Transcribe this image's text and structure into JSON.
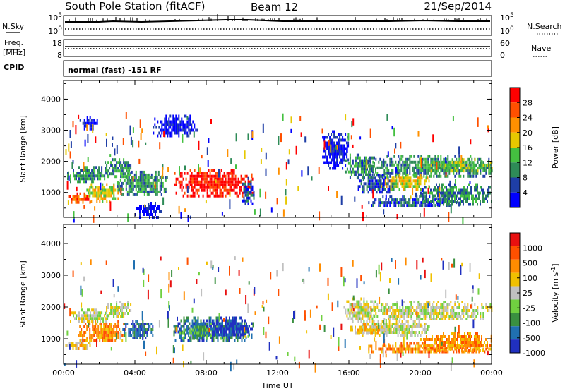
{
  "header": {
    "title": "South Pole Station (fitACF)",
    "beam": "Beam 12",
    "date": "21/Sep/2014"
  },
  "strip": {
    "nsky_label": "N.Sky",
    "nsearch_label": "N.Search",
    "freq_label_1": "Freq.",
    "freq_label_2": "[MHz]",
    "nave_label": "Nave",
    "cpid_label": "CPID",
    "cpid_text": "normal (fast) -151 RF",
    "noise_ticks_left": [
      "10^5",
      "10^0"
    ],
    "noise_ticks_right": [
      "10^5",
      "10^0"
    ],
    "freq_ticks_left": [
      "18",
      "8"
    ],
    "freq_ticks_right": [
      "60",
      "0"
    ]
  },
  "colors": {
    "power": [
      "#0000ff",
      "#1e3ea6",
      "#2e8b57",
      "#44c040",
      "#e6c800",
      "#ff9000",
      "#ff5000",
      "#ff0000"
    ],
    "velocity": [
      "#2030c0",
      "#2070b0",
      "#3a9040",
      "#70d040",
      "#c0c0c0",
      "#f0c000",
      "#ff8c00",
      "#ff5000",
      "#e81010"
    ]
  },
  "chart_data": [
    {
      "type": "heatmap",
      "quantity": "power",
      "ylabel": "Slant Range [km]",
      "xlabel": "",
      "ylim": [
        200,
        4600
      ],
      "xlim": [
        0,
        24
      ],
      "y_ticks": [
        "1000",
        "2000",
        "3000",
        "4000"
      ],
      "x_ticks": [
        "00:00",
        "04:00",
        "08:00",
        "12:00",
        "16:00",
        "20:00",
        "00:00"
      ],
      "colorbar_label": "Power [dB]",
      "colorbar_ticks": [
        "28",
        "24",
        "20",
        "16",
        "12",
        "8",
        "4"
      ],
      "colorbar_range": [
        0,
        32
      ],
      "regions": [
        {
          "x": [
            0.2,
            2.5
          ],
          "y": [
            1350,
            1850
          ],
          "level": 2
        },
        {
          "x": [
            2.3,
            3.8
          ],
          "y": [
            1500,
            2100
          ],
          "level": 2
        },
        {
          "x": [
            0.1,
            1.5
          ],
          "y": [
            650,
            1000
          ],
          "level": 6
        },
        {
          "x": [
            1.2,
            3.2
          ],
          "y": [
            750,
            1300
          ],
          "level": 4
        },
        {
          "x": [
            3.0,
            5.8
          ],
          "y": [
            900,
            1700
          ],
          "level": 2
        },
        {
          "x": [
            6.2,
            10.6
          ],
          "y": [
            850,
            1750
          ],
          "level": 7
        },
        {
          "x": [
            10.0,
            10.7
          ],
          "y": [
            600,
            1500
          ],
          "level": 1
        },
        {
          "x": [
            0.9,
            2.0
          ],
          "y": [
            3050,
            3450
          ],
          "level": 0
        },
        {
          "x": [
            5.0,
            7.5
          ],
          "y": [
            2800,
            3500
          ],
          "level": 0
        },
        {
          "x": [
            15.8,
            17.5
          ],
          "y": [
            1500,
            2250
          ],
          "level": 2
        },
        {
          "x": [
            17.0,
            24.0
          ],
          "y": [
            1500,
            2200
          ],
          "level": 2
        },
        {
          "x": [
            20.5,
            24.0
          ],
          "y": [
            1650,
            2100
          ],
          "level": 3
        },
        {
          "x": [
            16.5,
            18.5
          ],
          "y": [
            1000,
            1600
          ],
          "level": 1
        },
        {
          "x": [
            18.0,
            20.5
          ],
          "y": [
            1100,
            1600
          ],
          "level": 4
        },
        {
          "x": [
            17.0,
            22.0
          ],
          "y": [
            550,
            900
          ],
          "level": 1
        },
        {
          "x": [
            20.0,
            24.0
          ],
          "y": [
            650,
            1300
          ],
          "level": 2
        },
        {
          "x": [
            14.5,
            16.0
          ],
          "y": [
            1800,
            3000
          ],
          "level": 0
        },
        {
          "x": [
            4.0,
            5.5
          ],
          "y": [
            200,
            700
          ],
          "level": 0
        }
      ]
    },
    {
      "type": "heatmap",
      "quantity": "velocity",
      "ylabel": "Slant Range [km]",
      "xlabel": "Time UT",
      "ylim": [
        200,
        4600
      ],
      "xlim": [
        0,
        24
      ],
      "y_ticks": [
        "1000",
        "2000",
        "3000",
        "4000"
      ],
      "x_ticks": [
        "00:00",
        "04:00",
        "08:00",
        "12:00",
        "16:00",
        "20:00",
        "00:00"
      ],
      "colorbar_label": "Velocity [m s^-1]",
      "colorbar_ticks": [
        "1000",
        "500",
        "100",
        "25",
        "-25",
        "-100",
        "-500",
        "-1000"
      ],
      "colorbar_range": [
        -1000,
        1000
      ],
      "regions": [
        {
          "x": [
            0.2,
            2.6
          ],
          "y": [
            1550,
            1950
          ],
          "level": 4
        },
        {
          "x": [
            2.3,
            3.8
          ],
          "y": [
            1700,
            2200
          ],
          "level": 4
        },
        {
          "x": [
            0.1,
            1.5
          ],
          "y": [
            700,
            1000
          ],
          "level": 5
        },
        {
          "x": [
            0.8,
            3.5
          ],
          "y": [
            900,
            1600
          ],
          "level": 6
        },
        {
          "x": [
            3.3,
            5.0
          ],
          "y": [
            1000,
            1600
          ],
          "level": 1
        },
        {
          "x": [
            6.0,
            10.6
          ],
          "y": [
            900,
            1700
          ],
          "level": 1
        },
        {
          "x": [
            6.5,
            9.0
          ],
          "y": [
            1000,
            1500
          ],
          "level": 2
        },
        {
          "x": [
            8.0,
            10.6
          ],
          "y": [
            1100,
            1700
          ],
          "level": 0
        },
        {
          "x": [
            15.7,
            17.5
          ],
          "y": [
            1550,
            2300
          ],
          "level": 4
        },
        {
          "x": [
            17.0,
            24.0
          ],
          "y": [
            1600,
            2200
          ],
          "level": 4
        },
        {
          "x": [
            16.5,
            20.5
          ],
          "y": [
            1100,
            1600
          ],
          "level": 4
        },
        {
          "x": [
            17.0,
            24.0
          ],
          "y": [
            550,
            900
          ],
          "level": 6
        },
        {
          "x": [
            20.0,
            24.0
          ],
          "y": [
            650,
            1200
          ],
          "level": 6
        },
        {
          "x": [
            16.0,
            18.0
          ],
          "y": [
            1150,
            1500
          ],
          "level": 5
        }
      ]
    }
  ]
}
